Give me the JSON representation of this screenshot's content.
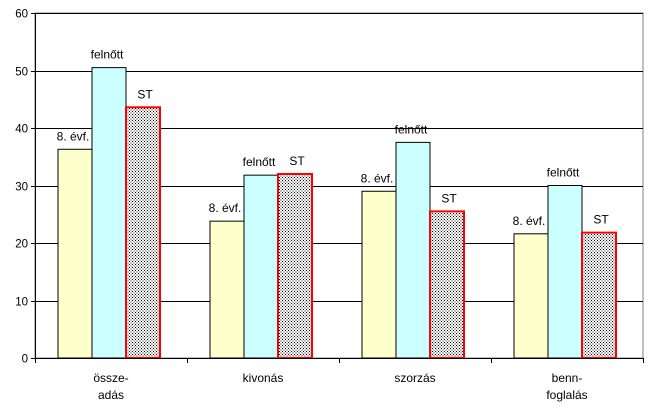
{
  "chart_data": {
    "type": "bar",
    "title": "",
    "xlabel": "",
    "ylabel": "",
    "ylim": [
      0,
      60
    ],
    "yticks": [
      0,
      10,
      20,
      30,
      40,
      50,
      60
    ],
    "grid": true,
    "categories": [
      [
        "össze-",
        "adás"
      ],
      [
        "kivonás"
      ],
      [
        "szorzás"
      ],
      [
        "benn-",
        "foglalás"
      ]
    ],
    "series": [
      {
        "name": "8. évf.",
        "values": [
          36.3,
          23.8,
          29.0,
          21.6
        ],
        "fill": "#ffffcc",
        "stroke": "#000000",
        "pattern": "none"
      },
      {
        "name": "felnőtt",
        "values": [
          50.5,
          31.8,
          37.5,
          30.0
        ],
        "fill": "#ccffff",
        "stroke": "#000000",
        "pattern": "none"
      },
      {
        "name": "ST",
        "values": [
          43.6,
          32.0,
          25.5,
          21.8
        ],
        "fill": "#ffffff",
        "stroke": "#ff0000",
        "pattern": "dots"
      }
    ]
  }
}
